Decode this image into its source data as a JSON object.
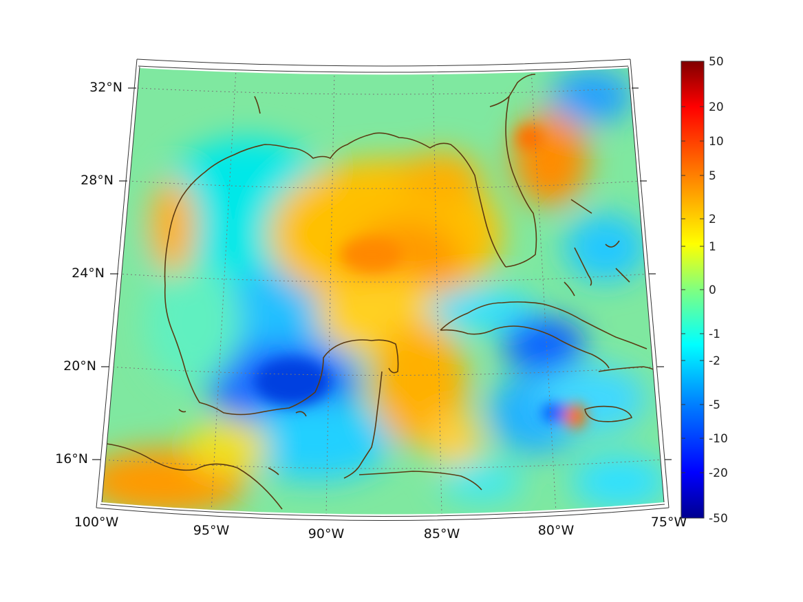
{
  "map": {
    "region": "Gulf of Mexico and Caribbean",
    "lat_labels": [
      "32°N",
      "28°N",
      "24°N",
      "20°N",
      "16°N"
    ],
    "lon_labels": [
      "100°W",
      "95°W",
      "90°W",
      "85°W",
      "80°W",
      "75°W"
    ],
    "gridlines": "dotted",
    "coastline_color": "#5a3a12",
    "colormap": "jet"
  },
  "colorbar": {
    "ticks": [
      "50",
      "20",
      "10",
      "5",
      "2",
      "1",
      "0",
      "-1",
      "-2",
      "-5",
      "-10",
      "-20",
      "-50"
    ],
    "colors": [
      "#7f0000",
      "#ff0000",
      "#ff8000",
      "#ffff00",
      "#80ff80",
      "#00ffff",
      "#0080ff",
      "#0000ff",
      "#00008f"
    ]
  }
}
